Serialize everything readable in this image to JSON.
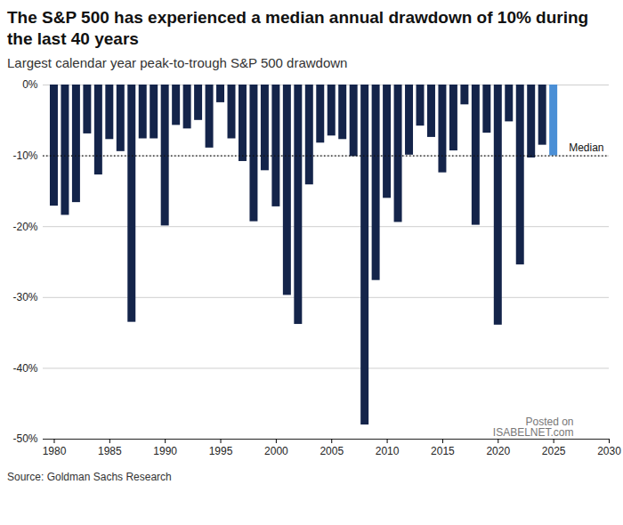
{
  "chart_data": {
    "type": "bar",
    "title": "The S&P 500 has experienced a median annual drawdown of 10% during the last 40 years",
    "subtitle": "Largest calendar year peak-to-trough S&P 500 drawdown",
    "source": "Source: Goldman Sachs Research",
    "watermark": [
      "Posted on",
      "ISABELNET.com"
    ],
    "x": [
      1980,
      1981,
      1982,
      1983,
      1984,
      1985,
      1986,
      1987,
      1988,
      1989,
      1990,
      1991,
      1992,
      1993,
      1994,
      1995,
      1996,
      1997,
      1998,
      1999,
      2000,
      2001,
      2002,
      2003,
      2004,
      2005,
      2006,
      2007,
      2008,
      2009,
      2010,
      2011,
      2012,
      2013,
      2014,
      2015,
      2016,
      2017,
      2018,
      2019,
      2020,
      2021,
      2022,
      2023,
      2024,
      2025
    ],
    "values": [
      -17.1,
      -18.4,
      -16.6,
      -6.9,
      -12.7,
      -7.7,
      -9.4,
      -33.5,
      -7.6,
      -7.6,
      -19.9,
      -5.7,
      -6.2,
      -5.0,
      -8.9,
      -2.5,
      -7.6,
      -10.8,
      -19.3,
      -12.1,
      -17.2,
      -29.7,
      -33.8,
      -14.1,
      -8.2,
      -7.2,
      -7.7,
      -10.1,
      -48.0,
      -27.6,
      -16.0,
      -19.4,
      -9.9,
      -5.8,
      -7.4,
      -12.4,
      -9.3,
      -2.8,
      -19.8,
      -6.8,
      -33.9,
      -5.2,
      -25.4,
      -10.3,
      -8.5,
      -10.0
    ],
    "colors": [
      "#14244a",
      "#14244a",
      "#14244a",
      "#14244a",
      "#14244a",
      "#14244a",
      "#14244a",
      "#14244a",
      "#14244a",
      "#14244a",
      "#14244a",
      "#14244a",
      "#14244a",
      "#14244a",
      "#14244a",
      "#14244a",
      "#14244a",
      "#14244a",
      "#14244a",
      "#14244a",
      "#14244a",
      "#14244a",
      "#14244a",
      "#14244a",
      "#14244a",
      "#14244a",
      "#14244a",
      "#14244a",
      "#14244a",
      "#14244a",
      "#14244a",
      "#14244a",
      "#14244a",
      "#14244a",
      "#14244a",
      "#14244a",
      "#14244a",
      "#14244a",
      "#14244a",
      "#14244a",
      "#14244a",
      "#14244a",
      "#14244a",
      "#14244a",
      "#14244a",
      "#4a8fd6"
    ],
    "xlim": [
      1979,
      2030
    ],
    "xticks": [
      1980,
      1985,
      1990,
      1995,
      2000,
      2005,
      2010,
      2015,
      2020,
      2025,
      2030
    ],
    "ylim": [
      -50,
      0
    ],
    "yticks": [
      {
        "value": 0,
        "label": "0%"
      },
      {
        "value": -10,
        "label": "-10%"
      },
      {
        "value": -20,
        "label": "-20%"
      },
      {
        "value": -30,
        "label": "-30%"
      },
      {
        "value": -40,
        "label": "-40%"
      },
      {
        "value": -50,
        "label": "-50%"
      }
    ],
    "grid": true,
    "annotations": [
      {
        "text": "Median",
        "y": -10
      }
    ]
  }
}
